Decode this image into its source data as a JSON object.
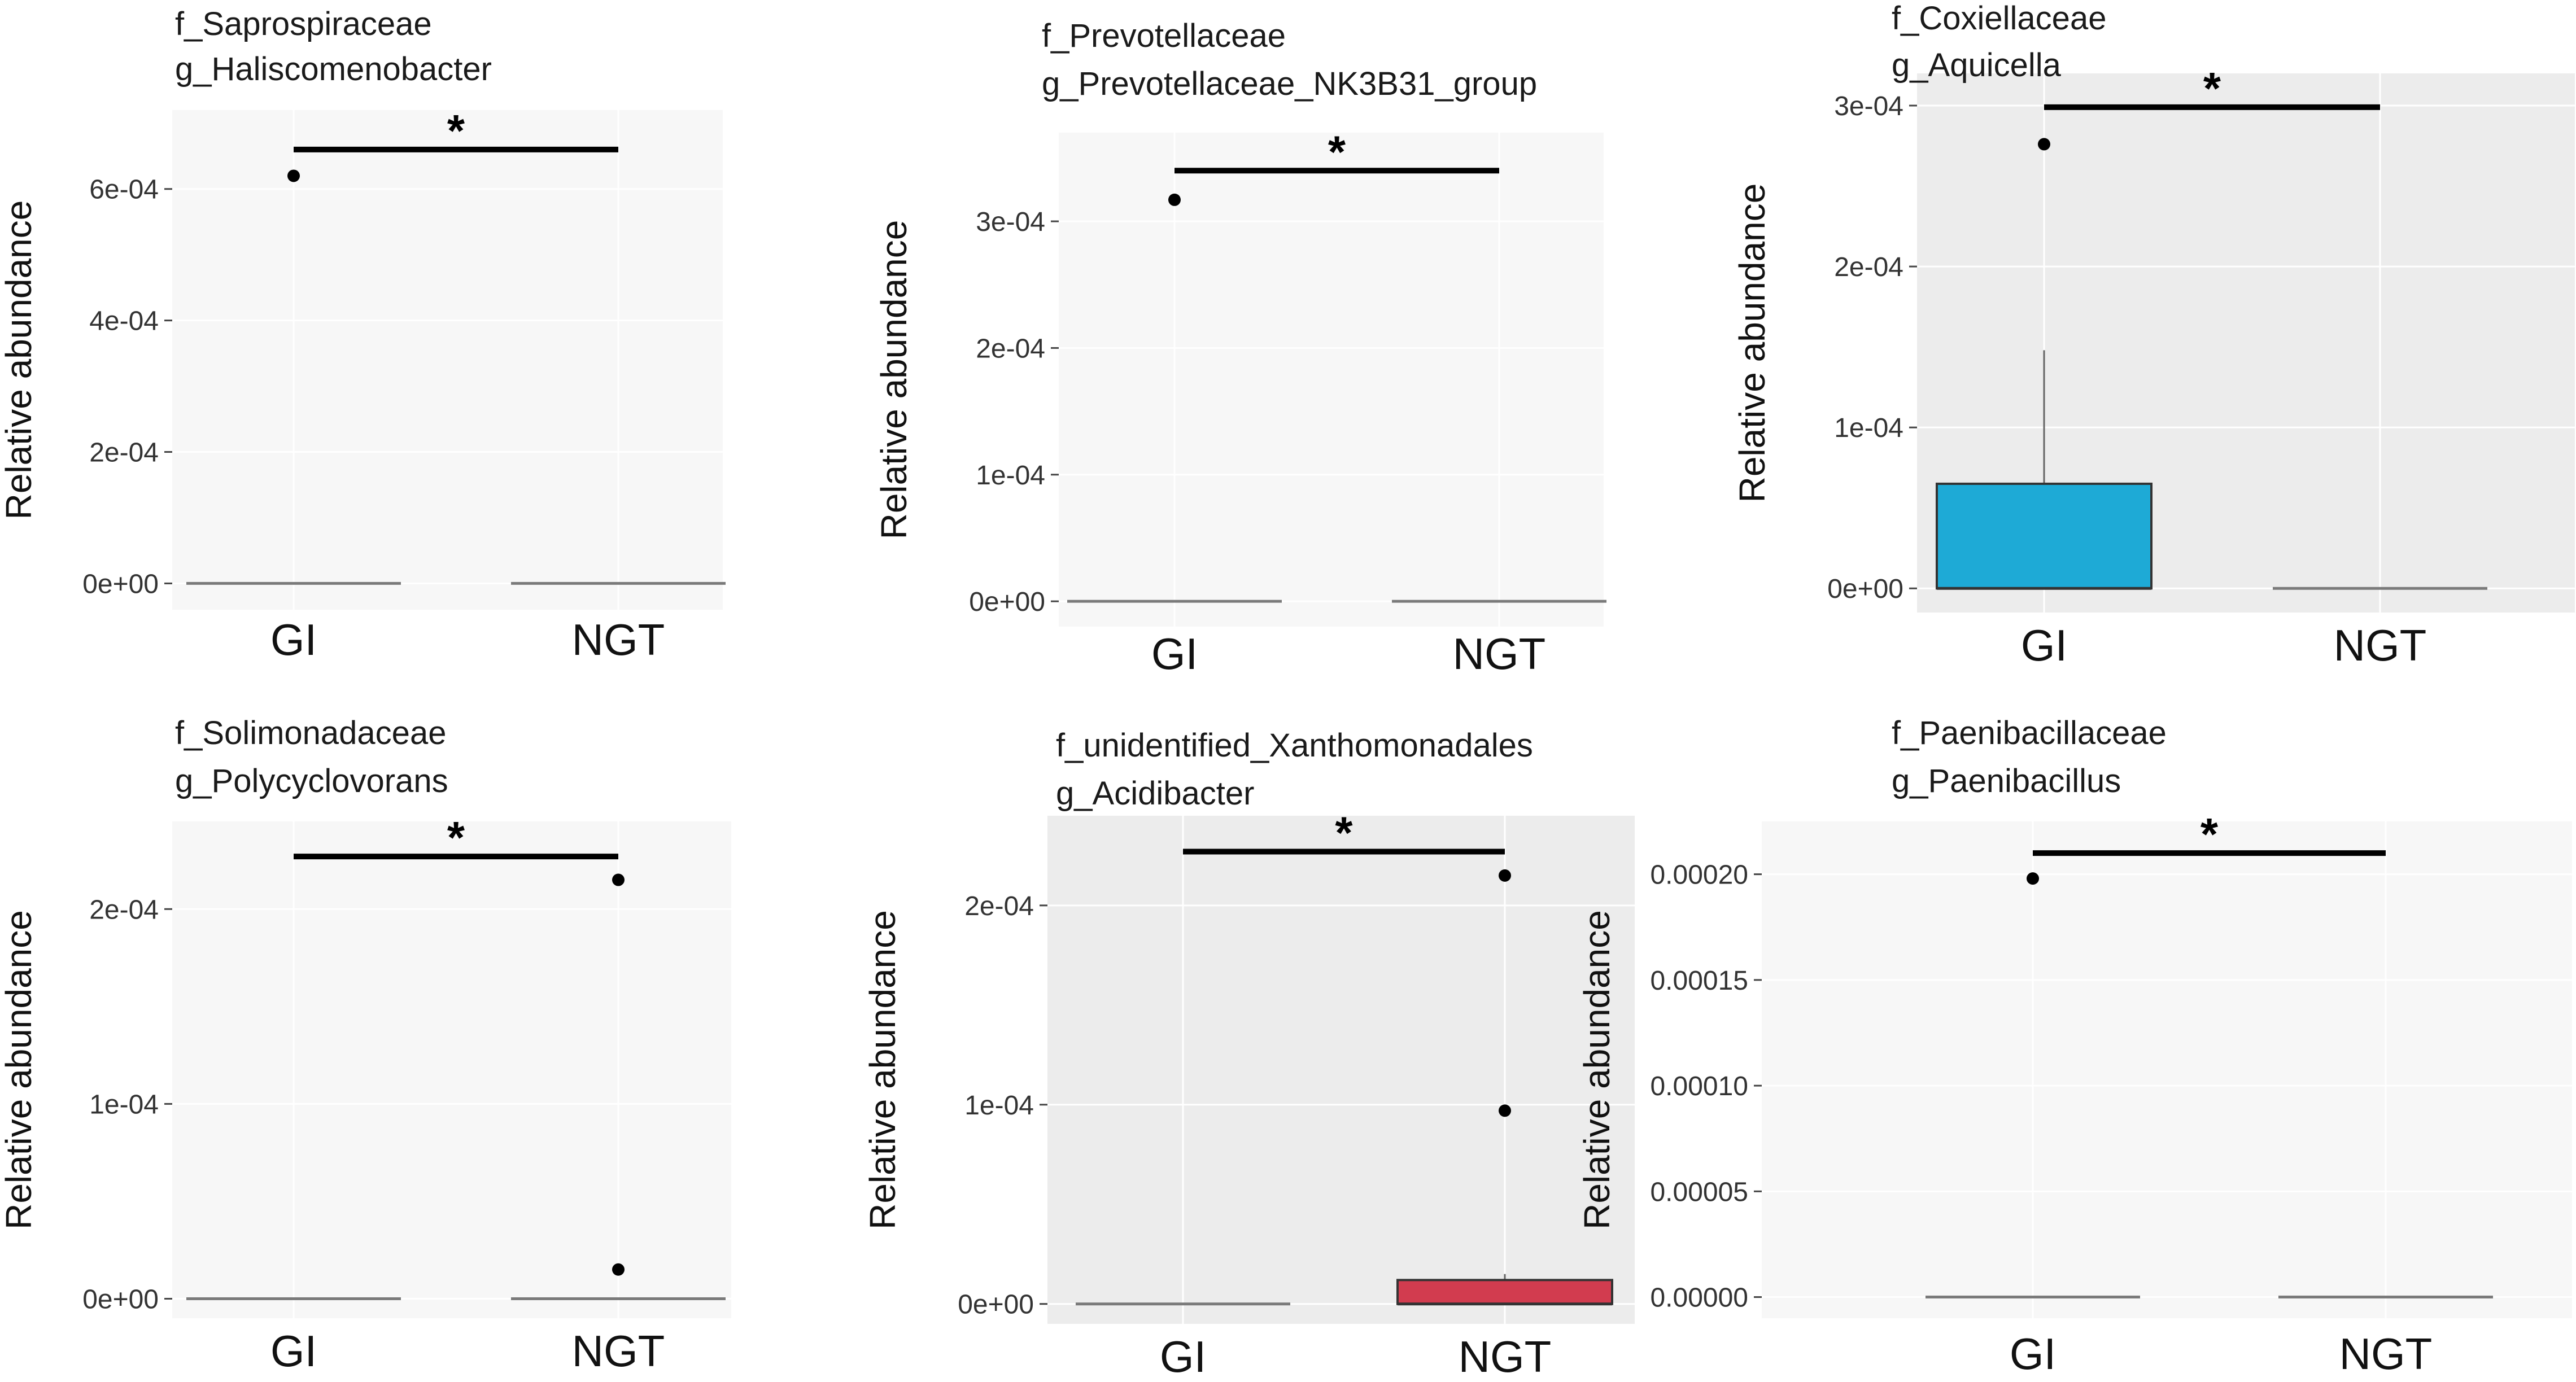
{
  "chart_data": [
    {
      "type": "boxplot",
      "title_line1": "f_Saprospiraceae",
      "title_line2": "g_Haliscomenobacter",
      "ylabel": "Relative abundance",
      "ylim": [
        -4e-05,
        0.00072
      ],
      "yticks": [
        0,
        0.0002,
        0.0004,
        0.0006
      ],
      "ytick_labels": [
        "0e+00",
        "2e-04",
        "4e-04",
        "6e-04"
      ],
      "categories": [
        "GI",
        "NGT"
      ],
      "boxes": [
        {
          "group": "GI",
          "q1": 0,
          "median": 0,
          "q3": 0,
          "whisker_low": 0,
          "whisker_high": 0,
          "fill": null,
          "outliers": [
            0.00062
          ]
        },
        {
          "group": "NGT",
          "q1": 0,
          "median": 0,
          "q3": 0,
          "whisker_low": 0,
          "whisker_high": 0,
          "fill": null,
          "outliers": []
        }
      ],
      "significance": {
        "label": "*",
        "y": 0.00066
      },
      "panel_bg": "#f7f7f7"
    },
    {
      "type": "boxplot",
      "title_line1": "f_Prevotellaceae",
      "title_line2": "g_Prevotellaceae_NK3B31_group",
      "ylabel": "Relative abundance",
      "ylim": [
        -2e-05,
        0.00037
      ],
      "yticks": [
        0,
        0.0001,
        0.0002,
        0.0003
      ],
      "ytick_labels": [
        "0e+00",
        "1e-04",
        "2e-04",
        "3e-04"
      ],
      "categories": [
        "GI",
        "NGT"
      ],
      "boxes": [
        {
          "group": "GI",
          "q1": 0,
          "median": 0,
          "q3": 0,
          "whisker_low": 0,
          "whisker_high": 0,
          "fill": null,
          "outliers": [
            0.000317
          ]
        },
        {
          "group": "NGT",
          "q1": 0,
          "median": 0,
          "q3": 0,
          "whisker_low": 0,
          "whisker_high": 0,
          "fill": null,
          "outliers": []
        }
      ],
      "significance": {
        "label": "*",
        "y": 0.00034
      },
      "panel_bg": "#f7f7f7"
    },
    {
      "type": "boxplot",
      "title_line1": "f_Coxiellaceae",
      "title_line2": "g_Aquicella",
      "ylabel": "Relative abundance",
      "ylim": [
        -1.5e-05,
        0.00032
      ],
      "yticks": [
        0,
        0.0001,
        0.0002,
        0.0003
      ],
      "ytick_labels": [
        "0e+00",
        "1e-04",
        "2e-04",
        "3e-04"
      ],
      "categories": [
        "GI",
        "NGT"
      ],
      "boxes": [
        {
          "group": "GI",
          "q1": 0,
          "median": 0,
          "q3": 6.5e-05,
          "whisker_low": 0,
          "whisker_high": 0.000148,
          "fill": "#1eaad6",
          "outliers": [
            0.000276
          ]
        },
        {
          "group": "NGT",
          "q1": 0,
          "median": 0,
          "q3": 0,
          "whisker_low": 0,
          "whisker_high": 0,
          "fill": null,
          "outliers": []
        }
      ],
      "significance": {
        "label": "*",
        "y": 0.000299
      },
      "panel_bg": "#ececec"
    },
    {
      "type": "boxplot",
      "title_line1": "f_Solimonadaceae",
      "title_line2": "g_Polycyclovorans",
      "ylabel": "Relative abundance",
      "ylim": [
        -1e-05,
        0.000245
      ],
      "yticks": [
        0,
        0.0001,
        0.0002
      ],
      "ytick_labels": [
        "0e+00",
        "1e-04",
        "2e-04"
      ],
      "categories": [
        "GI",
        "NGT"
      ],
      "boxes": [
        {
          "group": "GI",
          "q1": 0,
          "median": 0,
          "q3": 0,
          "whisker_low": 0,
          "whisker_high": 0,
          "fill": null,
          "outliers": []
        },
        {
          "group": "NGT",
          "q1": 0,
          "median": 0,
          "q3": 0,
          "whisker_low": 0,
          "whisker_high": 0,
          "fill": null,
          "outliers": [
            0.000215,
            1.5e-05
          ]
        }
      ],
      "significance": {
        "label": "*",
        "y": 0.000227
      },
      "panel_bg": "#f7f7f7"
    },
    {
      "type": "boxplot",
      "title_line1": "f_unidentified_Xanthomonadales",
      "title_line2": "g_Acidibacter",
      "ylabel": "Relative abundance",
      "ylim": [
        -1e-05,
        0.000245
      ],
      "yticks": [
        0,
        0.0001,
        0.0002
      ],
      "ytick_labels": [
        "0e+00",
        "1e-04",
        "2e-04"
      ],
      "categories": [
        "GI",
        "NGT"
      ],
      "boxes": [
        {
          "group": "GI",
          "q1": 0,
          "median": 0,
          "q3": 0,
          "whisker_low": 0,
          "whisker_high": 0,
          "fill": null,
          "outliers": []
        },
        {
          "group": "NGT",
          "q1": 0,
          "median": 0,
          "q3": 1.2e-05,
          "whisker_low": 0,
          "whisker_high": 1.5e-05,
          "fill": "#d23c4f",
          "outliers": [
            0.000215,
            9.7e-05
          ]
        }
      ],
      "significance": {
        "label": "*",
        "y": 0.000227
      },
      "panel_bg": "#ececec"
    },
    {
      "type": "boxplot",
      "title_line1": "f_Paenibacillaceae",
      "title_line2": "g_Paenibacillus",
      "ylabel": "Relative abundance",
      "ylim": [
        -1e-05,
        0.000225
      ],
      "yticks": [
        0,
        5e-05,
        0.0001,
        0.00015,
        0.0002
      ],
      "ytick_labels": [
        "0.00000",
        "0.00005",
        "0.00010",
        "0.00015",
        "0.00020"
      ],
      "categories": [
        "GI",
        "NGT"
      ],
      "boxes": [
        {
          "group": "GI",
          "q1": 0,
          "median": 0,
          "q3": 0,
          "whisker_low": 0,
          "whisker_high": 0,
          "fill": null,
          "outliers": [
            0.000198
          ]
        },
        {
          "group": "NGT",
          "q1": 0,
          "median": 0,
          "q3": 0,
          "whisker_low": 0,
          "whisker_high": 0,
          "fill": null,
          "outliers": []
        }
      ],
      "significance": {
        "label": "*",
        "y": 0.00021
      },
      "panel_bg": "#f7f7f7"
    }
  ]
}
